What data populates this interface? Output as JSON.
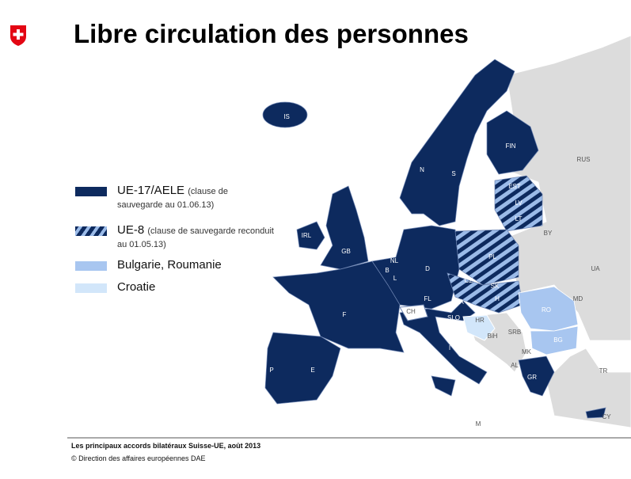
{
  "header": {
    "title": "Libre circulation des personnes"
  },
  "legend": [
    {
      "label": "UE-17/AELE",
      "note": "(clause de sauvegarde au 01.06.13)"
    },
    {
      "label": "UE-8",
      "note": "(clause de sauvegarde reconduit au 01.05.13)"
    },
    {
      "label": "Bulgarie, Roumanie"
    },
    {
      "label": "Croatie"
    }
  ],
  "map": {
    "labels": [
      "IS",
      "N",
      "S",
      "FIN",
      "EST",
      "LV",
      "LT",
      "RUS",
      "BY",
      "PL",
      "IRL",
      "GB",
      "NL",
      "B",
      "L",
      "D",
      "CZ",
      "SK",
      "A",
      "H",
      "F",
      "CH",
      "FL",
      "SLO",
      "HR",
      "UA",
      "MD",
      "RO",
      "BiH",
      "SRB",
      "MK",
      "AL",
      "BG",
      "GR",
      "TR",
      "I",
      "P",
      "E",
      "M",
      "CY"
    ]
  },
  "footer": {
    "source": "Les principaux accords bilatéraux Suisse-UE, août 2013",
    "copyright": "© Direction des affaires européennes DAE"
  }
}
